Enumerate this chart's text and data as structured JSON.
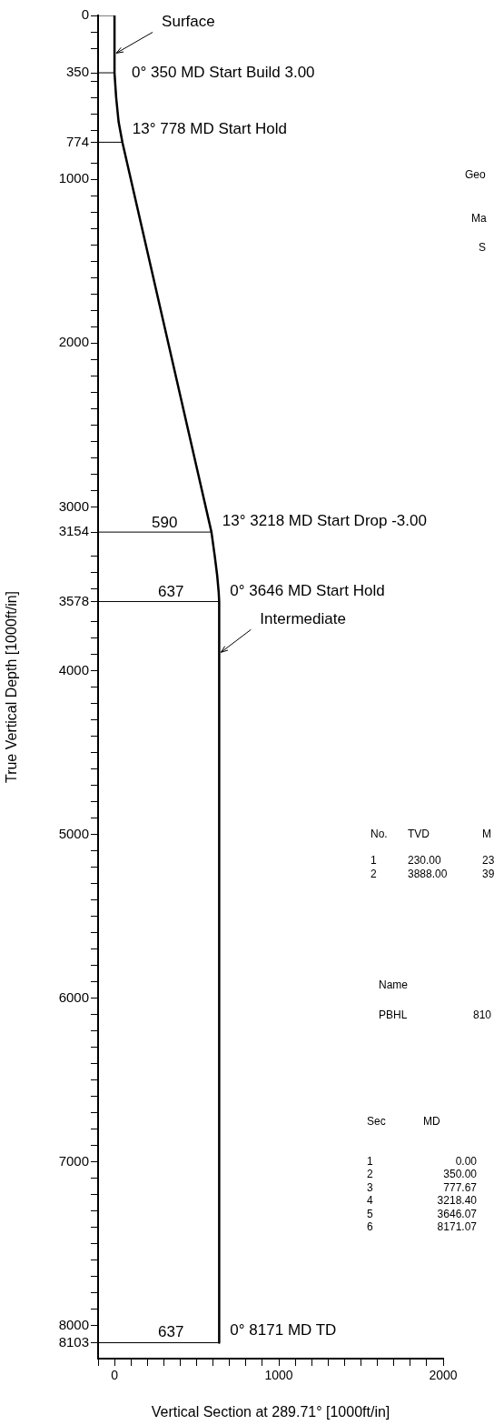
{
  "chart_data": {
    "type": "line",
    "xlabel": "Vertical Section at 289.71° [1000ft/in]",
    "ylabel": "True Vertical Depth [1000ft/in]",
    "xlim": [
      -100,
      2000
    ],
    "ylim": [
      8200,
      0
    ],
    "xticks": [
      {
        "value": -100,
        "label": null
      },
      0,
      {
        "value": 100,
        "label": null
      },
      {
        "value": 200,
        "label": null
      },
      {
        "value": 300,
        "label": null
      },
      {
        "value": 400,
        "label": null
      },
      {
        "value": 500,
        "label": null
      },
      {
        "value": 600,
        "label": null
      },
      {
        "value": 700,
        "label": null
      },
      {
        "value": 800,
        "label": null
      },
      {
        "value": 900,
        "label": null
      },
      1000,
      {
        "value": 1100,
        "label": null
      },
      {
        "value": 1200,
        "label": null
      },
      {
        "value": 1300,
        "label": null
      },
      {
        "value": 1400,
        "label": null
      },
      {
        "value": 1500,
        "label": null
      },
      {
        "value": 1600,
        "label": null
      },
      {
        "value": 1700,
        "label": null
      },
      {
        "value": 1800,
        "label": null
      },
      {
        "value": 1900,
        "label": null
      },
      2000
    ],
    "yticks": [
      0,
      {
        "value": 100,
        "label": null
      },
      {
        "value": 200,
        "label": null
      },
      350,
      {
        "value": 400,
        "label": null
      },
      {
        "value": 500,
        "label": null
      },
      {
        "value": 600,
        "label": null
      },
      {
        "value": 700,
        "label": null
      },
      774,
      {
        "value": 900,
        "label": null
      },
      1000,
      {
        "value": 1100,
        "label": null
      },
      {
        "value": 1200,
        "label": null
      },
      {
        "value": 1300,
        "label": null
      },
      {
        "value": 1400,
        "label": null
      },
      {
        "value": 1500,
        "label": null
      },
      {
        "value": 1600,
        "label": null
      },
      {
        "value": 1700,
        "label": null
      },
      {
        "value": 1800,
        "label": null
      },
      {
        "value": 1900,
        "label": null
      },
      2000,
      {
        "value": 2100,
        "label": null
      },
      {
        "value": 2200,
        "label": null
      },
      {
        "value": 2300,
        "label": null
      },
      {
        "value": 2400,
        "label": null
      },
      {
        "value": 2500,
        "label": null
      },
      {
        "value": 2600,
        "label": null
      },
      {
        "value": 2700,
        "label": null
      },
      {
        "value": 2800,
        "label": null
      },
      {
        "value": 2900,
        "label": null
      },
      3000,
      3154,
      {
        "value": 3300,
        "label": null
      },
      {
        "value": 3400,
        "label": null
      },
      {
        "value": 3500,
        "label": null
      },
      3578,
      {
        "value": 3700,
        "label": null
      },
      {
        "value": 3800,
        "label": null
      },
      {
        "value": 3900,
        "label": null
      },
      4000,
      {
        "value": 4100,
        "label": null
      },
      {
        "value": 4200,
        "label": null
      },
      {
        "value": 4300,
        "label": null
      },
      {
        "value": 4400,
        "label": null
      },
      {
        "value": 4500,
        "label": null
      },
      {
        "value": 4600,
        "label": null
      },
      {
        "value": 4700,
        "label": null
      },
      {
        "value": 4800,
        "label": null
      },
      {
        "value": 4900,
        "label": null
      },
      5000,
      {
        "value": 5100,
        "label": null
      },
      {
        "value": 5200,
        "label": null
      },
      {
        "value": 5300,
        "label": null
      },
      {
        "value": 5400,
        "label": null
      },
      {
        "value": 5500,
        "label": null
      },
      {
        "value": 5600,
        "label": null
      },
      {
        "value": 5700,
        "label": null
      },
      {
        "value": 5800,
        "label": null
      },
      {
        "value": 5900,
        "label": null
      },
      6000,
      {
        "value": 6100,
        "label": null
      },
      {
        "value": 6200,
        "label": null
      },
      {
        "value": 6300,
        "label": null
      },
      {
        "value": 6400,
        "label": null
      },
      {
        "value": 6500,
        "label": null
      },
      {
        "value": 6600,
        "label": null
      },
      {
        "value": 6700,
        "label": null
      },
      {
        "value": 6800,
        "label": null
      },
      {
        "value": 6900,
        "label": null
      },
      7000,
      {
        "value": 7100,
        "label": null
      },
      {
        "value": 7200,
        "label": null
      },
      {
        "value": 7300,
        "label": null
      },
      {
        "value": 7400,
        "label": null
      },
      {
        "value": 7500,
        "label": null
      },
      {
        "value": 7600,
        "label": null
      },
      {
        "value": 7700,
        "label": null
      },
      {
        "value": 7800,
        "label": null
      },
      {
        "value": 7900,
        "label": null
      },
      8000,
      8103
    ],
    "marker": "none",
    "legend": false,
    "series": [
      {
        "color": "#000000",
        "x": [
          0,
          0,
          10,
          25,
          48,
          590,
          610,
          625,
          634,
          637,
          637
        ],
        "values": [
          0,
          350,
          500,
          650,
          774,
          3154,
          3300,
          3420,
          3520,
          3578,
          8103
        ]
      },
      {
        "color": "#000000",
        "x": [
          -100,
          0
        ],
        "values": [
          0,
          0
        ]
      },
      {
        "color": "#000000",
        "x": [
          -100,
          0
        ],
        "values": [
          350,
          350
        ]
      },
      {
        "color": "#000000",
        "x": [
          -100,
          48
        ],
        "values": [
          774,
          774
        ]
      },
      {
        "color": "#000000",
        "x": [
          -100,
          590
        ],
        "values": [
          3154,
          3154
        ]
      },
      {
        "color": "#000000",
        "x": [
          -100,
          637
        ],
        "values": [
          3578,
          3578
        ]
      },
      {
        "color": "#000000",
        "x": [
          -100,
          637
        ],
        "values": [
          8103,
          8103
        ]
      }
    ],
    "annotations": [
      {
        "text": "Surface",
        "x": 0,
        "y": 230
      },
      {
        "text": "0° 350 MD Start Build 3.00",
        "x": 0,
        "y": 350
      },
      {
        "text": "13° 778 MD Start Hold",
        "x": 48,
        "y": 774
      },
      {
        "text": "13° 3218 MD Start Drop -3.00",
        "x": 590,
        "y": 3154
      },
      {
        "text": "0° 3646 MD Start Hold",
        "x": 637,
        "y": 3578
      },
      {
        "text": "Intermediate",
        "x": 637,
        "y": 3888
      },
      {
        "text": "0° 8171 MD TD",
        "x": 637,
        "y": 8103
      },
      "590",
      "637",
      "637",
      "Geo",
      "Ma",
      "S",
      "No.",
      "TVD",
      "M",
      "1",
      "230.00",
      "23",
      "2",
      "3888.00",
      "39",
      "Name",
      "PBHL",
      "810",
      "Sec",
      "MD",
      "1",
      "0.00",
      "2",
      "350.00",
      "3",
      "777.67",
      "4",
      "3218.40",
      "5",
      "3646.07",
      "6",
      "8171.07"
    ]
  }
}
